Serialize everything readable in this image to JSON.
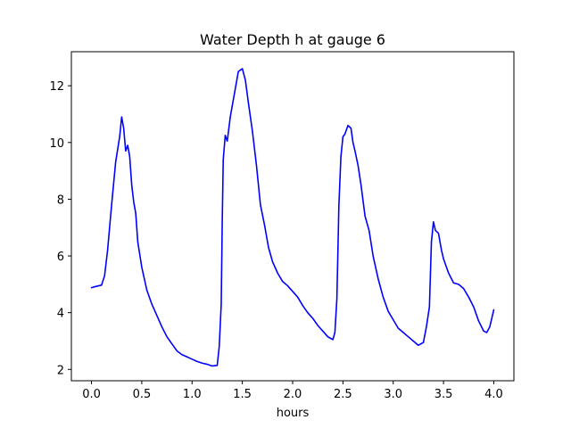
{
  "chart_data": {
    "type": "line",
    "title": "Water Depth h at gauge 6",
    "xlabel": "hours",
    "ylabel": "",
    "xlim": [
      -0.2,
      4.2
    ],
    "ylim": [
      1.6,
      13.2
    ],
    "xticks": [
      0.0,
      0.5,
      1.0,
      1.5,
      2.0,
      2.5,
      3.0,
      3.5,
      4.0
    ],
    "xtick_labels": [
      "0.0",
      "0.5",
      "1.0",
      "1.5",
      "2.0",
      "2.5",
      "3.0",
      "3.5",
      "4.0"
    ],
    "yticks": [
      2,
      4,
      6,
      8,
      10,
      12
    ],
    "ytick_labels": [
      "2",
      "4",
      "6",
      "8",
      "10",
      "12"
    ],
    "grid": false,
    "legend": "none",
    "series": [
      {
        "color": "#0000ff",
        "x": [
          0.0,
          0.05,
          0.1,
          0.13,
          0.16,
          0.2,
          0.24,
          0.28,
          0.3,
          0.32,
          0.34,
          0.36,
          0.38,
          0.4,
          0.42,
          0.44,
          0.46,
          0.5,
          0.55,
          0.6,
          0.65,
          0.7,
          0.75,
          0.8,
          0.85,
          0.9,
          0.95,
          1.0,
          1.05,
          1.1,
          1.15,
          1.2,
          1.25,
          1.27,
          1.29,
          1.3,
          1.31,
          1.33,
          1.35,
          1.38,
          1.4,
          1.43,
          1.46,
          1.5,
          1.53,
          1.56,
          1.6,
          1.64,
          1.68,
          1.72,
          1.76,
          1.8,
          1.85,
          1.9,
          1.95,
          2.0,
          2.05,
          2.1,
          2.15,
          2.2,
          2.25,
          2.3,
          2.35,
          2.4,
          2.42,
          2.44,
          2.46,
          2.48,
          2.5,
          2.52,
          2.55,
          2.58,
          2.6,
          2.62,
          2.65,
          2.68,
          2.72,
          2.76,
          2.8,
          2.85,
          2.9,
          2.95,
          3.0,
          3.05,
          3.1,
          3.15,
          3.2,
          3.25,
          3.3,
          3.33,
          3.36,
          3.38,
          3.4,
          3.42,
          3.45,
          3.48,
          3.5,
          3.55,
          3.6,
          3.65,
          3.7,
          3.75,
          3.8,
          3.85,
          3.9,
          3.93,
          3.96,
          4.0
        ],
        "y": [
          4.88,
          4.93,
          4.97,
          5.3,
          6.2,
          7.8,
          9.3,
          10.2,
          10.9,
          10.5,
          9.7,
          9.9,
          9.5,
          8.5,
          7.9,
          7.5,
          6.5,
          5.6,
          4.8,
          4.3,
          3.9,
          3.5,
          3.15,
          2.9,
          2.65,
          2.52,
          2.44,
          2.36,
          2.28,
          2.22,
          2.18,
          2.12,
          2.14,
          2.8,
          4.3,
          7.2,
          9.4,
          10.25,
          10.05,
          10.9,
          11.3,
          11.9,
          12.5,
          12.6,
          12.2,
          11.4,
          10.4,
          9.2,
          7.8,
          7.1,
          6.3,
          5.8,
          5.4,
          5.1,
          4.95,
          4.75,
          4.55,
          4.25,
          4.0,
          3.8,
          3.55,
          3.35,
          3.15,
          3.05,
          3.3,
          4.5,
          7.8,
          9.5,
          10.2,
          10.3,
          10.6,
          10.5,
          10.0,
          9.7,
          9.2,
          8.5,
          7.4,
          6.9,
          6.0,
          5.2,
          4.55,
          4.05,
          3.75,
          3.45,
          3.3,
          3.15,
          3.0,
          2.85,
          2.95,
          3.5,
          4.2,
          6.5,
          7.2,
          6.9,
          6.8,
          6.2,
          5.9,
          5.4,
          5.05,
          5.0,
          4.85,
          4.55,
          4.2,
          3.7,
          3.35,
          3.3,
          3.5,
          4.1
        ]
      }
    ]
  }
}
